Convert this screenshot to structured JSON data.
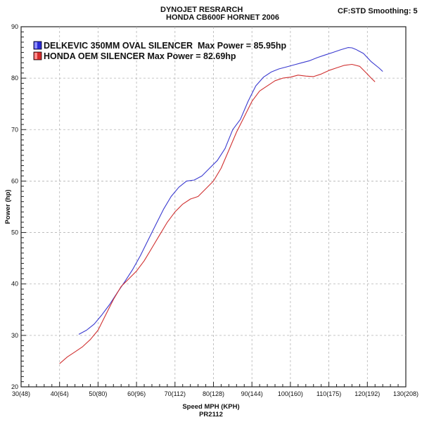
{
  "header": {
    "title_line1": "DYNOJET RESRARCH",
    "title_line2": "HONDA CB600F HORNET 2006",
    "settings": "CF:STD Smoothing: 5"
  },
  "chart_data": {
    "type": "line",
    "xlabel": "Speed MPH (KPH)",
    "x_sublabel": "PR2112",
    "ylabel": "Power (hp)",
    "xlim": [
      30,
      130
    ],
    "ylim": [
      20,
      90
    ],
    "x_ticks": [
      {
        "value": 30,
        "label": "30(48)"
      },
      {
        "value": 40,
        "label": "40(64)"
      },
      {
        "value": 50,
        "label": "50(80)"
      },
      {
        "value": 60,
        "label": "60(96)"
      },
      {
        "value": 70,
        "label": "70(112)"
      },
      {
        "value": 80,
        "label": "80(128)"
      },
      {
        "value": 90,
        "label": "90(144)"
      },
      {
        "value": 100,
        "label": "100(160)"
      },
      {
        "value": 110,
        "label": "110(175)"
      },
      {
        "value": 120,
        "label": "120(192)"
      },
      {
        "value": 130,
        "label": "130(208)"
      }
    ],
    "y_ticks": [
      20,
      30,
      40,
      50,
      60,
      70,
      80,
      90
    ],
    "grid": true,
    "legend_position": "top-left",
    "series": [
      {
        "name": "DELKEVIC 350MM OVAL SILENCER  Max Power = 85.95hp",
        "color": "#3a3ad0",
        "x": [
          45,
          47,
          49,
          51,
          53,
          55,
          57,
          59,
          61,
          63,
          65,
          67,
          69,
          71,
          73,
          75,
          77,
          79,
          81,
          83,
          85,
          87,
          89,
          91,
          93,
          95,
          97,
          99,
          101,
          103,
          105,
          107,
          109,
          111,
          113,
          115,
          116,
          117,
          119,
          121,
          123,
          124
        ],
        "y": [
          30.2,
          31.0,
          32.2,
          34.0,
          36.0,
          38.3,
          40.5,
          42.8,
          45.5,
          48.5,
          51.5,
          54.5,
          57.0,
          58.8,
          60.0,
          60.2,
          61.0,
          62.5,
          64.0,
          66.3,
          70.0,
          72.0,
          75.5,
          78.5,
          80.2,
          81.2,
          81.8,
          82.2,
          82.6,
          83.0,
          83.4,
          84.0,
          84.5,
          85.0,
          85.5,
          85.95,
          85.9,
          85.6,
          84.8,
          83.2,
          82.0,
          81.3
        ]
      },
      {
        "name": "HONDA OEM SILENCER Max Power = 82.69hp",
        "color": "#d03030",
        "x": [
          40,
          42,
          44,
          46,
          48,
          50,
          52,
          54,
          56,
          58,
          60,
          62,
          64,
          66,
          68,
          70,
          72,
          74,
          76,
          78,
          80,
          82,
          84,
          86,
          88,
          90,
          92,
          94,
          96,
          98,
          100,
          102,
          104,
          106,
          108,
          110,
          112,
          114,
          116,
          118,
          120,
          121,
          122
        ],
        "y": [
          24.5,
          25.8,
          26.8,
          27.8,
          29.2,
          31.0,
          34.0,
          37.0,
          39.5,
          41.0,
          42.5,
          44.5,
          47.0,
          49.5,
          52.0,
          54.0,
          55.5,
          56.5,
          57.0,
          58.5,
          60.0,
          62.5,
          66.0,
          69.5,
          72.5,
          75.5,
          77.5,
          78.5,
          79.5,
          80.0,
          80.2,
          80.6,
          80.4,
          80.3,
          80.8,
          81.5,
          82.0,
          82.5,
          82.69,
          82.3,
          80.8,
          80.0,
          79.3
        ]
      }
    ]
  }
}
